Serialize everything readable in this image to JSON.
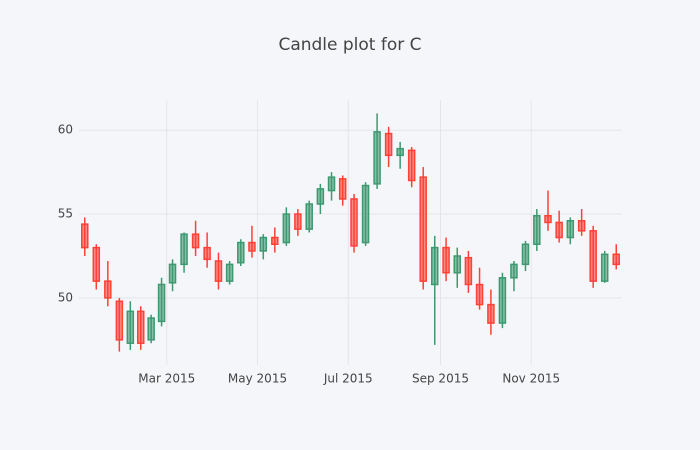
{
  "chart_data": {
    "type": "candlestick",
    "title": "Candle plot for C",
    "x": [
      "2015-01",
      "2015-01",
      "2015-01",
      "2015-01",
      "2015-02",
      "2015-02",
      "2015-02",
      "2015-02",
      "2015-03",
      "2015-03",
      "2015-03",
      "2015-03",
      "2015-04",
      "2015-04",
      "2015-04",
      "2015-04",
      "2015-05",
      "2015-05",
      "2015-05",
      "2015-05",
      "2015-06",
      "2015-06",
      "2015-06",
      "2015-06",
      "2015-07",
      "2015-07",
      "2015-07",
      "2015-07",
      "2015-08",
      "2015-08",
      "2015-08",
      "2015-08",
      "2015-09",
      "2015-09",
      "2015-09",
      "2015-09",
      "2015-10",
      "2015-10",
      "2015-10",
      "2015-10",
      "2015-11",
      "2015-11",
      "2015-11",
      "2015-11",
      "2015-12",
      "2015-12",
      "2015-12",
      "2015-12"
    ],
    "open": [
      54.4,
      53.0,
      51.0,
      49.8,
      47.3,
      49.2,
      47.5,
      48.6,
      50.9,
      52.0,
      53.8,
      53.0,
      52.2,
      51.0,
      52.1,
      53.3,
      52.8,
      53.6,
      53.3,
      55.0,
      54.1,
      55.6,
      56.4,
      57.1,
      55.9,
      53.3,
      56.8,
      59.8,
      58.5,
      58.8,
      57.2,
      50.8,
      53.0,
      51.5,
      52.4,
      50.8,
      49.6,
      48.5,
      51.2,
      52.0,
      53.2,
      54.9,
      54.5,
      53.6,
      54.6,
      54.0,
      51.0,
      52.6
    ],
    "high": [
      54.8,
      53.2,
      52.2,
      50.0,
      49.8,
      49.5,
      49.0,
      51.2,
      52.3,
      53.9,
      54.6,
      53.9,
      52.7,
      52.2,
      53.5,
      54.3,
      53.8,
      54.2,
      55.4,
      55.3,
      55.8,
      56.8,
      57.5,
      57.3,
      56.2,
      56.9,
      61.0,
      60.2,
      59.3,
      59.0,
      57.8,
      53.7,
      53.6,
      53.0,
      52.8,
      51.8,
      50.5,
      51.5,
      52.2,
      53.4,
      55.3,
      56.4,
      55.2,
      54.8,
      55.3,
      54.3,
      52.8,
      53.2
    ],
    "low": [
      52.5,
      50.5,
      49.5,
      46.8,
      46.9,
      46.9,
      47.3,
      48.3,
      50.4,
      51.5,
      52.5,
      51.8,
      50.5,
      50.8,
      51.9,
      52.4,
      52.3,
      52.7,
      53.1,
      53.7,
      53.9,
      55.0,
      55.8,
      55.5,
      52.7,
      53.1,
      56.5,
      57.8,
      57.7,
      56.6,
      50.5,
      47.2,
      51.0,
      50.6,
      50.3,
      49.3,
      47.8,
      48.2,
      50.4,
      51.6,
      52.8,
      54.0,
      53.3,
      53.2,
      53.7,
      50.6,
      50.9,
      51.7
    ],
    "close": [
      53.0,
      51.0,
      50.0,
      47.5,
      49.2,
      47.3,
      48.8,
      50.8,
      52.0,
      53.8,
      53.0,
      52.3,
      51.0,
      52.0,
      53.3,
      52.8,
      53.6,
      53.2,
      55.0,
      54.1,
      55.6,
      56.5,
      57.2,
      55.9,
      53.1,
      56.7,
      59.9,
      58.5,
      58.9,
      57.0,
      51.0,
      53.0,
      51.5,
      52.5,
      50.8,
      49.6,
      48.5,
      51.2,
      52.0,
      53.2,
      54.9,
      54.5,
      53.6,
      54.6,
      54.0,
      51.0,
      52.6,
      52.0
    ],
    "increasing_color": "#3d9970",
    "decreasing_color": "#ff4136",
    "xlim": [
      "2015-01",
      "2016-01"
    ],
    "xticks": [
      {
        "value": "2015-03",
        "label": "Mar 2015"
      },
      {
        "value": "2015-05",
        "label": "May 2015"
      },
      {
        "value": "2015-07",
        "label": "Jul 2015"
      },
      {
        "value": "2015-09",
        "label": "Sep 2015"
      },
      {
        "value": "2015-11",
        "label": "Nov 2015"
      }
    ],
    "ylim": [
      46.0,
      61.8
    ],
    "yticks": [
      50,
      55,
      60
    ],
    "grid": true
  }
}
